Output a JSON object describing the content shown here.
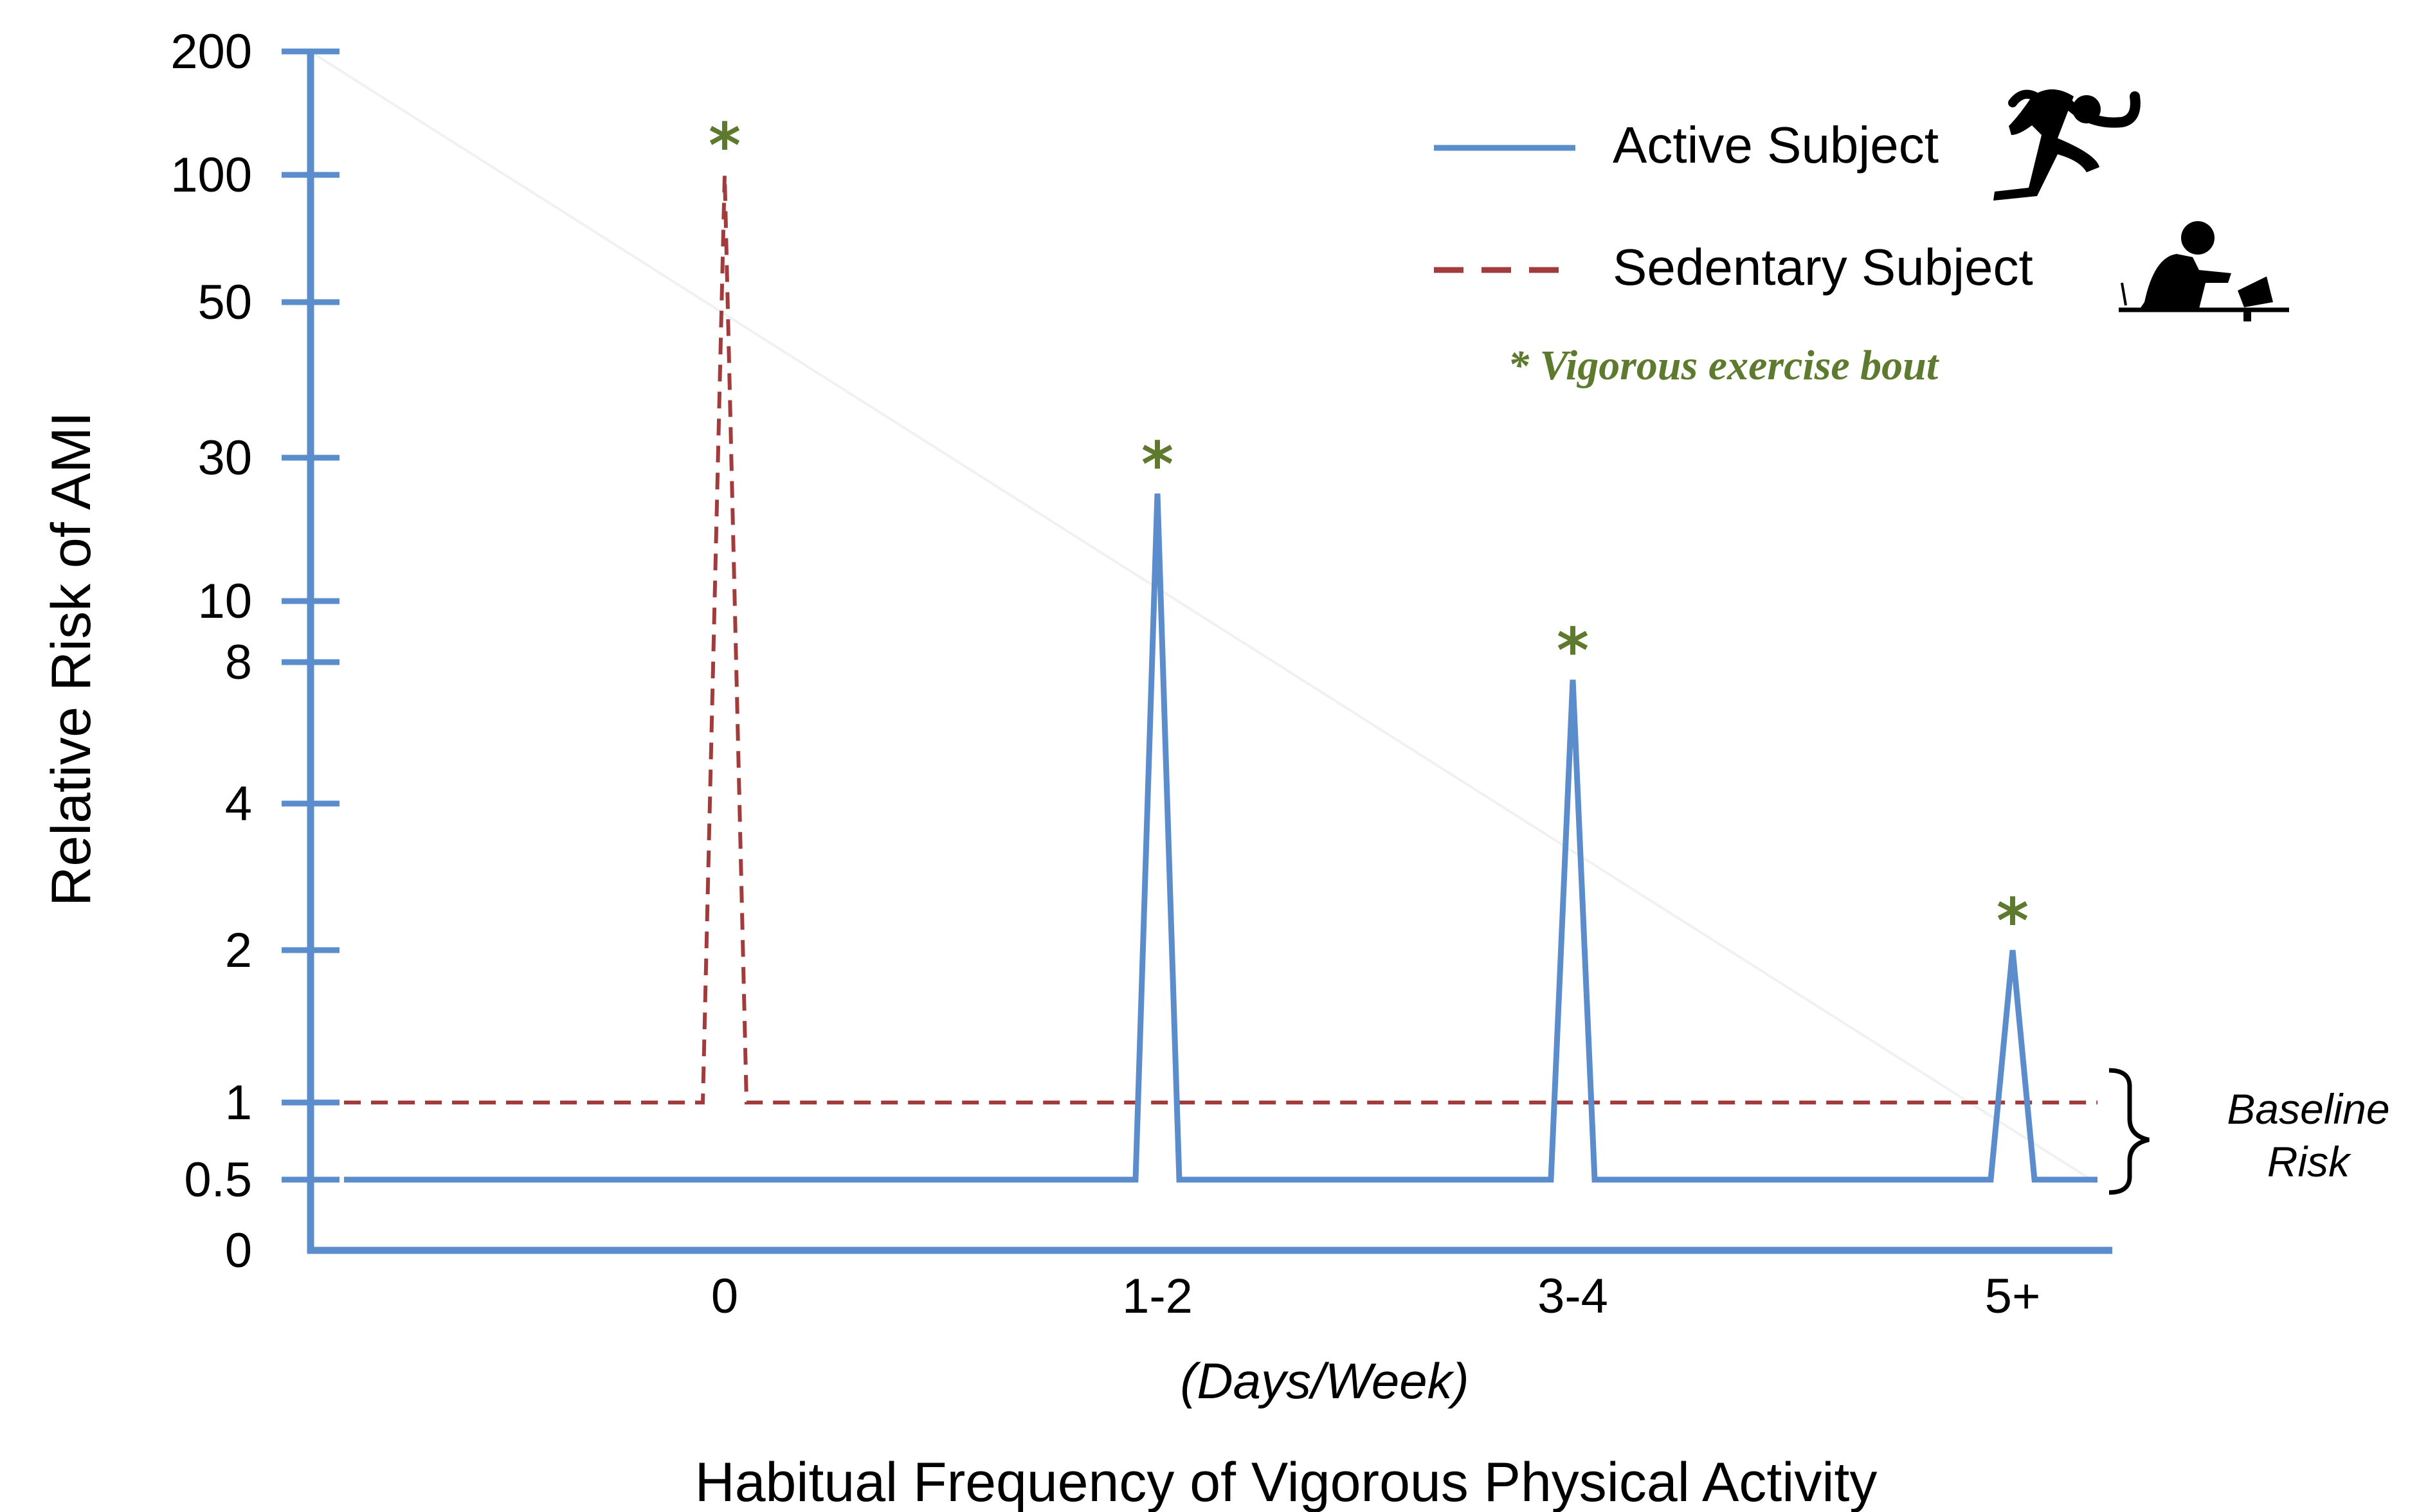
{
  "chart_data": {
    "type": "line",
    "title": "",
    "xlabel": "Habitual Frequency of Vigorous Physical Activity",
    "xsublabel": "(Days/Week)",
    "ylabel": "Relative Risk of AMI",
    "categories": [
      "0",
      "1-2",
      "3-4",
      "5+"
    ],
    "y_tick_labels": [
      "0",
      "0.5",
      "1",
      "2",
      "4",
      "8",
      "10",
      "30",
      "50",
      "100",
      "200"
    ],
    "y_scale": "nonlinear (labelled ticks)",
    "series": [
      {
        "name": "Active Subject",
        "style": "solid",
        "color": "#5B8CCB",
        "baseline": 0.5,
        "peaks": [
          {
            "category": "1-2",
            "value": 25
          },
          {
            "category": "3-4",
            "value": 7.5
          },
          {
            "category": "5+",
            "value": 2
          }
        ]
      },
      {
        "name": "Sedentary Subject",
        "style": "dashed",
        "color": "#A23B3B",
        "baseline": 1,
        "peaks": [
          {
            "category": "0",
            "value": 100
          }
        ]
      }
    ],
    "peak_marker": "*",
    "peak_marker_color": "#5E7A2E",
    "annotation": "* Vigorous exercise bout",
    "baseline_label": [
      "Baseline",
      "Risk"
    ],
    "legend_position": "top-right"
  }
}
